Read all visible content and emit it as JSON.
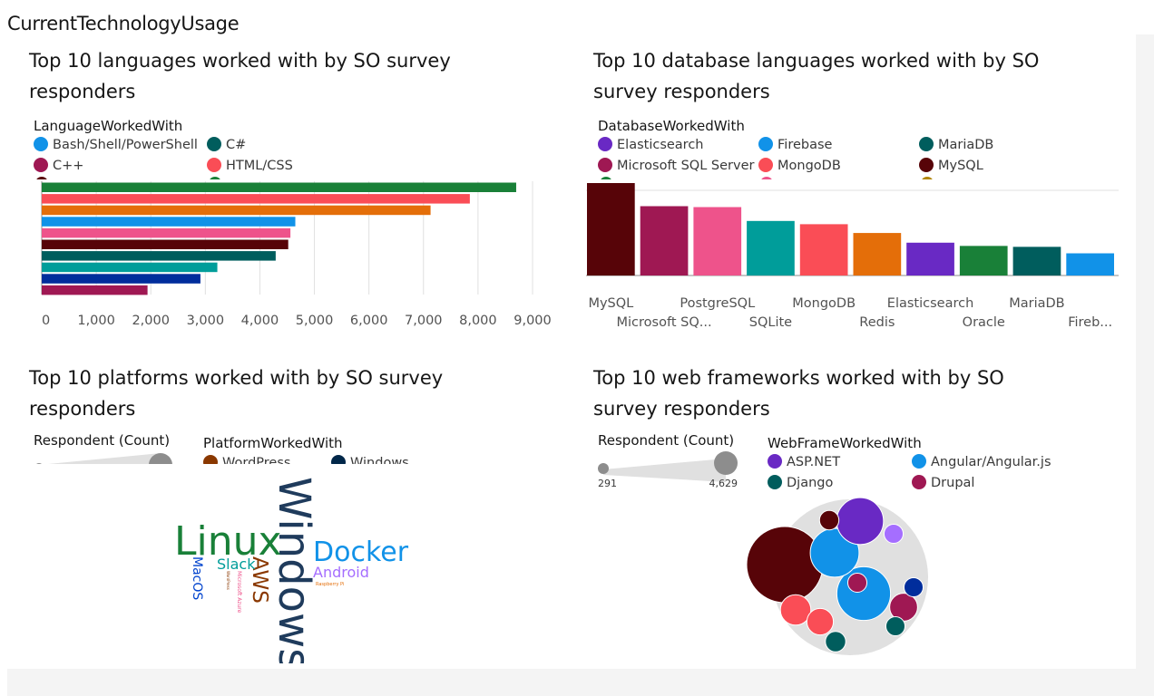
{
  "dashboard": {
    "title": "CurrentTechnologyUsage"
  },
  "colors": {
    "blue": "#1192e8",
    "teal_dark": "#005d5d",
    "magenta": "#9f1853",
    "red": "#fa4d56",
    "maroon": "#570408",
    "green": "#198038",
    "navy": "#002d9c",
    "pink": "#ee538b",
    "yellow": "#b28600",
    "teal": "#009d9a",
    "orange": "#e46e09",
    "purple": "#6929c4",
    "grey_bubble": "#8d8d8d"
  },
  "tiles": {
    "languages": {
      "title_line1": "Top 10 languages worked with by SO survey",
      "title_line2": "responders",
      "legend_title": "LanguageWorkedWith",
      "legend": [
        {
          "label": "Bash/Shell/PowerShell",
          "color": "#1192e8"
        },
        {
          "label": "C#",
          "color": "#005d5d"
        },
        {
          "label": "C++",
          "color": "#9f1853"
        },
        {
          "label": "HTML/CSS",
          "color": "#fa4d56"
        }
      ]
    },
    "databases": {
      "title_line1": "Top 10 database languages worked with by SO",
      "title_line2": "survey responders",
      "legend_title": "DatabaseWorkedWith",
      "legend": [
        {
          "label": "Elasticsearch",
          "color": "#6929c4"
        },
        {
          "label": "Firebase",
          "color": "#1192e8"
        },
        {
          "label": "MariaDB",
          "color": "#005d5d"
        },
        {
          "label": "Microsoft SQL Server",
          "color": "#9f1853"
        },
        {
          "label": "MongoDB",
          "color": "#fa4d56"
        },
        {
          "label": "MySQL",
          "color": "#570408"
        }
      ]
    },
    "platforms": {
      "title_line1": "Top 10 platforms worked with by SO survey",
      "title_line2": "responders",
      "size_legend_title": "Respondent (Count)",
      "legend_title": "PlatformWorkedWith",
      "legend": [
        {
          "label": "WordPress",
          "color": "#8a3800"
        },
        {
          "label": "Windows",
          "color": "#012749"
        }
      ],
      "words": [
        {
          "text": "Windows",
          "color": "#1f3b5c"
        },
        {
          "text": "Linux",
          "color": "#198038"
        },
        {
          "text": "Docker",
          "color": "#1192e8"
        },
        {
          "text": "AWS",
          "color": "#8a3800"
        },
        {
          "text": "Slack",
          "color": "#009d9a"
        },
        {
          "text": "Android",
          "color": "#a56eff"
        },
        {
          "text": "MacOS",
          "color": "#0043ce"
        },
        {
          "text": "Microsoft Azure",
          "color": "#ee538b"
        },
        {
          "text": "Raspberry Pi",
          "color": "#e46e09"
        },
        {
          "text": "WordPress",
          "color": "#8a3800"
        }
      ]
    },
    "webframes": {
      "title_line1": "Top 10 web frameworks worked with by SO",
      "title_line2": "survey responders",
      "size_legend_title": "Respondent (Count)",
      "size_min": "291",
      "size_max": "4,629",
      "legend_title": "WebFrameWorkedWith",
      "legend": [
        {
          "label": "ASP.NET",
          "color": "#6929c4"
        },
        {
          "label": "Angular/Angular.js",
          "color": "#1192e8"
        },
        {
          "label": "Django",
          "color": "#005d5d"
        },
        {
          "label": "Drupal",
          "color": "#9f1853"
        }
      ]
    }
  },
  "chart_data": [
    {
      "type": "bar",
      "orientation": "horizontal",
      "x_ticks": [
        "0",
        "1,000",
        "2,000",
        "3,000",
        "4,000",
        "5,000",
        "6,000",
        "7,000",
        "8,000",
        "9,000"
      ],
      "xlim": [
        0,
        9000
      ],
      "grid": true,
      "bars": [
        {
          "value": 8700,
          "color": "#198038"
        },
        {
          "value": 7850,
          "color": "#fa4d56"
        },
        {
          "value": 7130,
          "color": "#e46e09"
        },
        {
          "value": 4650,
          "color": "#1192e8"
        },
        {
          "value": 4560,
          "color": "#ee538b"
        },
        {
          "value": 4520,
          "color": "#570408"
        },
        {
          "value": 4290,
          "color": "#005d5d"
        },
        {
          "value": 3220,
          "color": "#009d9a"
        },
        {
          "value": 2910,
          "color": "#002d9c"
        },
        {
          "value": 1940,
          "color": "#9f1853"
        }
      ]
    },
    {
      "type": "bar",
      "categories": [
        "MySQL",
        "Microsoft SQ...",
        "PostgreSQL",
        "SQLite",
        "MongoDB",
        "Redis",
        "Elasticsearch",
        "Oracle",
        "MariaDB",
        "Fireb..."
      ],
      "values": [
        1000,
        750,
        740,
        590,
        555,
        460,
        355,
        320,
        310,
        240
      ],
      "colors": [
        "#570408",
        "#9f1853",
        "#ee538b",
        "#009d9a",
        "#fa4d56",
        "#e46e09",
        "#6929c4",
        "#198038",
        "#005d5d",
        "#1192e8"
      ],
      "ylim": [
        0,
        1000
      ],
      "grid": true
    },
    {
      "type": "bubble",
      "label_min": "291",
      "label_max": "4,629",
      "bubbles": [
        {
          "value": 4629,
          "color": "#570408"
        },
        {
          "value": 2300,
          "color": "#1192e8"
        },
        {
          "value": 1900,
          "color": "#1192e8"
        },
        {
          "value": 1750,
          "color": "#6929c4"
        },
        {
          "value": 740,
          "color": "#fa4d56"
        },
        {
          "value": 620,
          "color": "#9f1853"
        },
        {
          "value": 560,
          "color": "#fa4d56"
        },
        {
          "value": 330,
          "color": "#005d5d"
        },
        {
          "value": 300,
          "color": "#570408"
        },
        {
          "value": 291,
          "color": "#005d5d"
        },
        {
          "value": 291,
          "color": "#a56eff"
        },
        {
          "value": 291,
          "color": "#002d9c"
        },
        {
          "value": 291,
          "color": "#9f1853"
        }
      ]
    }
  ]
}
